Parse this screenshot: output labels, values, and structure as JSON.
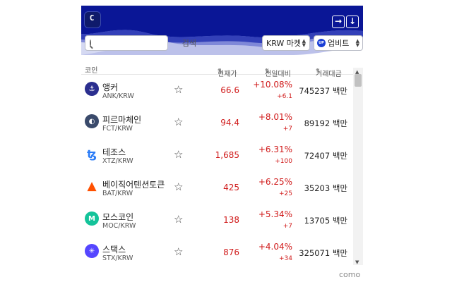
{
  "header": {
    "logo_text": "C",
    "login_icon": "sign-in-icon",
    "download_icon": "download-icon"
  },
  "controls": {
    "search_placeholder": "검색",
    "market_label": "KRW 마켓",
    "exchange_logo": "UP",
    "exchange_label": "업비트"
  },
  "table": {
    "headers": {
      "coin": "코인",
      "price": "현재가",
      "change": "전일대비",
      "volume": "거래대금"
    },
    "rows": [
      {
        "name": "앵커",
        "pair": "ANK/KRW",
        "price": "66.6",
        "change": "+10.08%",
        "diff": "+6.1",
        "volume": "745237 백만",
        "icon": "anchor-coin-icon",
        "icon_color": "#2b2f8f"
      },
      {
        "name": "피르마체인",
        "pair": "FCT/KRW",
        "price": "94.4",
        "change": "+8.01%",
        "diff": "+7",
        "volume": "89192 백만",
        "icon": "firmachain-coin-icon",
        "icon_color": "#3a4a6b"
      },
      {
        "name": "테조스",
        "pair": "XTZ/KRW",
        "price": "1,685",
        "change": "+6.31%",
        "diff": "+100",
        "volume": "72407 백만",
        "icon": "tezos-coin-icon",
        "icon_color": "#2c7df7"
      },
      {
        "name": "베이직어텐션토큰",
        "pair": "BAT/KRW",
        "price": "425",
        "change": "+6.25%",
        "diff": "+25",
        "volume": "35203 백만",
        "icon": "bat-coin-icon",
        "icon_color": "#ff5000"
      },
      {
        "name": "모스코인",
        "pair": "MOC/KRW",
        "price": "138",
        "change": "+5.34%",
        "diff": "+7",
        "volume": "13705 백만",
        "icon": "moss-coin-icon",
        "icon_color": "#14c39a"
      },
      {
        "name": "스택스",
        "pair": "STX/KRW",
        "price": "876",
        "change": "+4.04%",
        "diff": "+34",
        "volume": "325071 백만",
        "icon": "stacks-coin-icon",
        "icon_color": "#5546ff"
      }
    ]
  },
  "footer": {
    "brand": "como"
  },
  "colors": {
    "brand_navy": "#0a1696",
    "rise_red": "#d01a1a"
  }
}
